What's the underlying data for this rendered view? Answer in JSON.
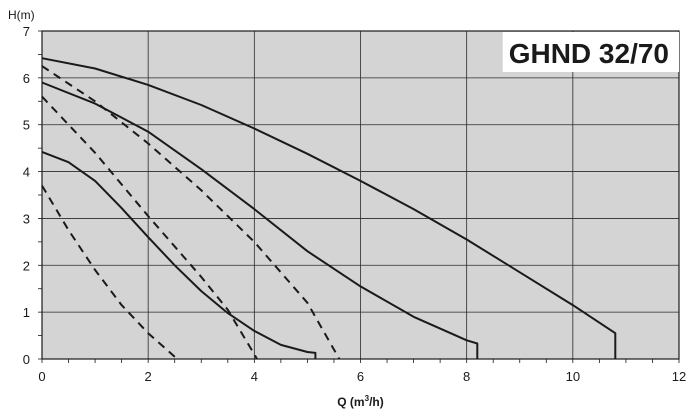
{
  "chart_data": {
    "type": "line",
    "title": "GHND 32/70",
    "xlabel": "Q (m³/h)",
    "xlabel_main": "Q (m",
    "xlabel_sup": "3",
    "xlabel_tail": "/h)",
    "ylabel": "H(m)",
    "xlim": [
      0,
      12
    ],
    "ylim": [
      0,
      7
    ],
    "xticks": [
      "0",
      "2",
      "4",
      "6",
      "8",
      "10",
      "12"
    ],
    "yticks": [
      "0",
      "1",
      "2",
      "3",
      "4",
      "5",
      "6",
      "7"
    ],
    "grid": true,
    "background_color": "#d4d4d4",
    "line_color": "#1a1a1a",
    "series": [
      {
        "style": "solid",
        "points": [
          [
            0,
            6.42
          ],
          [
            1,
            6.2
          ],
          [
            2,
            5.85
          ],
          [
            3,
            5.42
          ],
          [
            4,
            4.92
          ],
          [
            5,
            4.38
          ],
          [
            6,
            3.8
          ],
          [
            7,
            3.2
          ],
          [
            8,
            2.55
          ],
          [
            9,
            1.85
          ],
          [
            10,
            1.15
          ],
          [
            10.8,
            0.55
          ],
          [
            10.8,
            0
          ]
        ]
      },
      {
        "style": "solid",
        "points": [
          [
            0,
            5.9
          ],
          [
            1,
            5.45
          ],
          [
            2,
            4.85
          ],
          [
            3,
            4.05
          ],
          [
            4,
            3.2
          ],
          [
            5,
            2.3
          ],
          [
            6,
            1.55
          ],
          [
            7,
            0.9
          ],
          [
            8,
            0.4
          ],
          [
            8.2,
            0.33
          ],
          [
            8.2,
            0
          ]
        ]
      },
      {
        "style": "solid",
        "points": [
          [
            0,
            4.42
          ],
          [
            0.5,
            4.2
          ],
          [
            1,
            3.8
          ],
          [
            1.5,
            3.22
          ],
          [
            2,
            2.6
          ],
          [
            2.5,
            2.0
          ],
          [
            3,
            1.45
          ],
          [
            3.5,
            0.98
          ],
          [
            4,
            0.6
          ],
          [
            4.5,
            0.3
          ],
          [
            5,
            0.15
          ],
          [
            5.15,
            0.13
          ],
          [
            5.15,
            0
          ]
        ]
      },
      {
        "style": "dashed",
        "points": [
          [
            0,
            6.25
          ],
          [
            1,
            5.5
          ],
          [
            2,
            4.6
          ],
          [
            3,
            3.6
          ],
          [
            4,
            2.5
          ],
          [
            5,
            1.2
          ],
          [
            5.6,
            0
          ]
        ]
      },
      {
        "style": "dashed",
        "points": [
          [
            0,
            5.6
          ],
          [
            1,
            4.4
          ],
          [
            2,
            3.05
          ],
          [
            3,
            1.75
          ],
          [
            3.5,
            1.05
          ],
          [
            4,
            0.1
          ],
          [
            4.05,
            0
          ]
        ]
      },
      {
        "style": "dashed",
        "points": [
          [
            0,
            3.7
          ],
          [
            0.5,
            2.75
          ],
          [
            1,
            1.9
          ],
          [
            1.5,
            1.15
          ],
          [
            2,
            0.55
          ],
          [
            2.5,
            0.05
          ],
          [
            2.55,
            0
          ]
        ]
      }
    ]
  }
}
